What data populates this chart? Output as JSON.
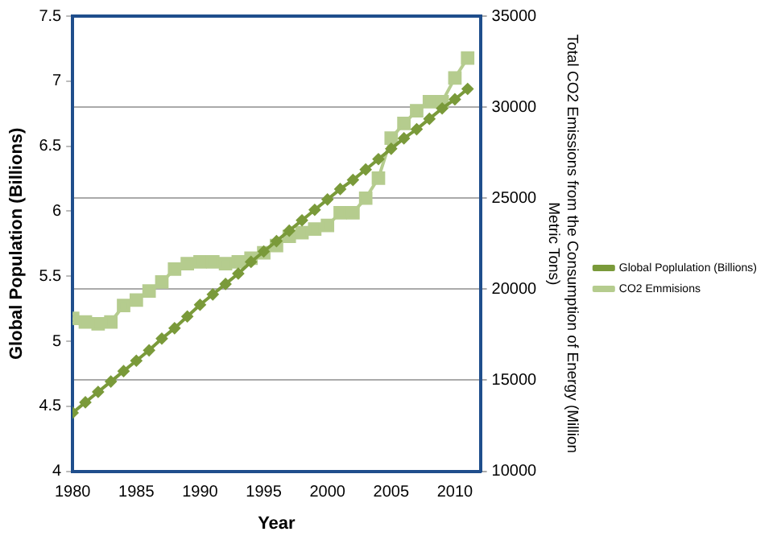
{
  "chart_data": {
    "type": "line",
    "xlabel": "Year",
    "ylabel": "Global Population (Billions)",
    "y2label": "Total CO2 Emissions from the Consumption of Energy (Million Metric Tons)",
    "x": [
      1980,
      1981,
      1982,
      1983,
      1984,
      1985,
      1986,
      1987,
      1988,
      1989,
      1990,
      1991,
      1992,
      1993,
      1994,
      1995,
      1996,
      1997,
      1998,
      1999,
      2000,
      2001,
      2002,
      2003,
      2004,
      2005,
      2006,
      2007,
      2008,
      2009,
      2010,
      2011
    ],
    "series": [
      {
        "name": "Global Poplulation (Billions)",
        "color": "#7a9a3a",
        "marker": "diamond",
        "values": [
          4.45,
          4.53,
          4.61,
          4.69,
          4.77,
          4.85,
          4.93,
          5.02,
          5.1,
          5.19,
          5.28,
          5.36,
          5.44,
          5.52,
          5.61,
          5.69,
          5.77,
          5.85,
          5.93,
          6.01,
          6.09,
          6.17,
          6.24,
          6.32,
          6.4,
          6.48,
          6.56,
          6.63,
          6.71,
          6.79,
          6.86,
          6.94
        ]
      },
      {
        "name": "CO2 Emmisions",
        "color": "#b5cc8e",
        "marker": "square",
        "axis": "y2",
        "values": [
          18400,
          18200,
          18100,
          18200,
          19100,
          19400,
          19900,
          20400,
          21100,
          21400,
          21500,
          21500,
          21400,
          21500,
          21700,
          22000,
          22400,
          22900,
          23100,
          23300,
          23500,
          24200,
          24200,
          25000,
          26100,
          28300,
          29100,
          29800,
          30300,
          30300,
          31600,
          32700
        ]
      }
    ],
    "xlim": [
      1980,
      2012
    ],
    "xticks": [
      1980,
      1985,
      1990,
      1995,
      2000,
      2005,
      2010
    ],
    "ylim": [
      4,
      7.5
    ],
    "yticks": [
      4,
      4.5,
      5,
      5.5,
      6,
      6.5,
      7,
      7.5
    ],
    "y2lim": [
      10000,
      35000
    ],
    "y2ticks": [
      10000,
      15000,
      20000,
      25000,
      30000,
      35000
    ],
    "grid": "y2",
    "legend": "right",
    "line_style": "solid"
  }
}
